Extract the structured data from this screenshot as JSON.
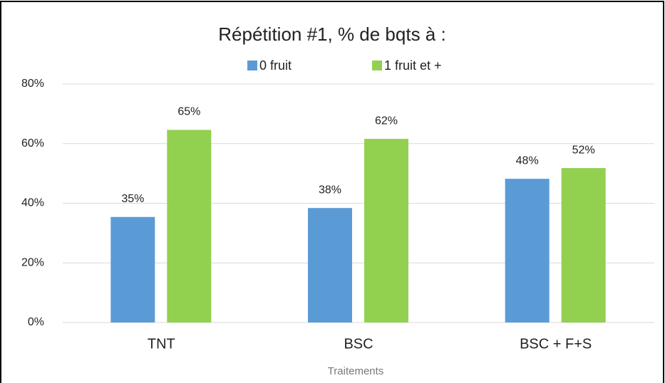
{
  "chart_data": {
    "type": "bar",
    "title": "Répétition #1, % de bqts à :",
    "x_label": "Traitements",
    "categories": [
      "TNT",
      "BSC",
      "BSC + F+S"
    ],
    "series": [
      {
        "name": "0 fruit",
        "color": "#5b9bd5",
        "values": [
          35.4,
          38.4,
          48.2
        ],
        "value_labels": [
          "35%",
          "38%",
          "48%"
        ]
      },
      {
        "name": "1 fruit et +",
        "color": "#92d050",
        "values": [
          64.6,
          61.6,
          51.8
        ],
        "value_labels": [
          "65%",
          "62%",
          "52%"
        ]
      }
    ],
    "ylim": [
      0,
      80
    ],
    "yticks": [
      {
        "value": 0,
        "label": "0%"
      },
      {
        "value": 20,
        "label": "20%"
      },
      {
        "value": 40,
        "label": "40%"
      },
      {
        "value": 60,
        "label": "60%"
      },
      {
        "value": 80,
        "label": "80%"
      }
    ],
    "grid": true,
    "legend": "top"
  }
}
